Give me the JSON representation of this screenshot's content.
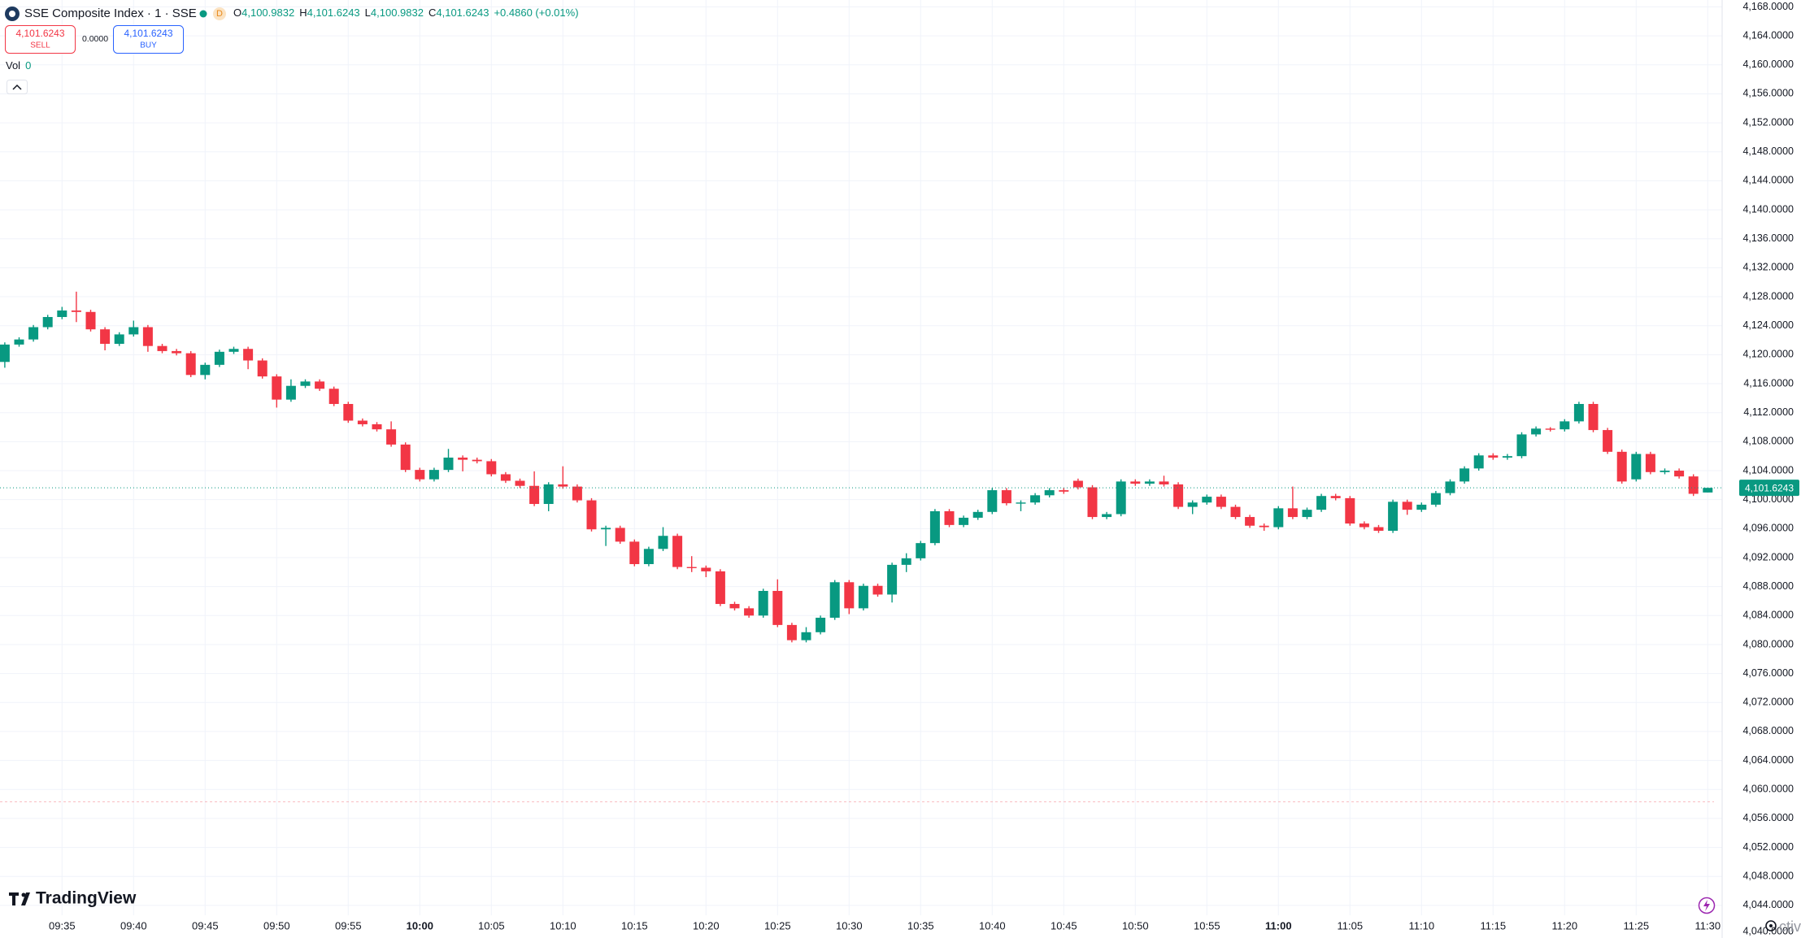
{
  "header": {
    "title": "SSE Composite Index · 1 · SSE",
    "interval_badge": "D",
    "ohlc": [
      {
        "label": "O",
        "value": "4,100.9832"
      },
      {
        "label": "H",
        "value": "4,101.6243"
      },
      {
        "label": "L",
        "value": "4,100.9832"
      },
      {
        "label": "C",
        "value": "4,101.6243"
      }
    ],
    "change": "+0.4860 (+0.01%)",
    "sell": {
      "price": "4,101.6243",
      "label": "SELL"
    },
    "spread": "0.0000",
    "buy": {
      "price": "4,101.6243",
      "label": "BUY"
    },
    "volume": {
      "label": "Vol",
      "value": "0"
    },
    "brand": "TradingView",
    "watermark_fragment": "ctiv"
  },
  "chart_data": {
    "type": "candlestick",
    "up_color": "#089981",
    "down_color": "#f23645",
    "grid": true,
    "categories": [
      null,
      null,
      null,
      null,
      "09:35",
      null,
      null,
      null,
      null,
      "09:40",
      null,
      null,
      null,
      null,
      "09:45",
      null,
      null,
      null,
      null,
      "09:50",
      null,
      null,
      null,
      null,
      "09:55",
      null,
      null,
      null,
      null,
      "10:00",
      null,
      null,
      null,
      null,
      "10:05",
      null,
      null,
      null,
      null,
      "10:10",
      null,
      null,
      null,
      null,
      "10:15",
      null,
      null,
      null,
      null,
      "10:20",
      null,
      null,
      null,
      null,
      "10:25",
      null,
      null,
      null,
      null,
      "10:30",
      null,
      null,
      null,
      null,
      "10:35",
      null,
      null,
      null,
      null,
      "10:40",
      null,
      null,
      null,
      null,
      "10:45",
      null,
      null,
      null,
      null,
      "10:50",
      null,
      null,
      null,
      null,
      "10:55",
      null,
      null,
      null,
      null,
      "11:00",
      null,
      null,
      null,
      null,
      "11:05",
      null,
      null,
      null,
      null,
      "11:10",
      null,
      null,
      null,
      null,
      "11:15",
      null,
      null,
      null,
      null,
      "11:20",
      null,
      null,
      null,
      null,
      "11:25",
      null,
      null,
      null,
      null,
      "11:30"
    ],
    "open": [
      4119.0,
      4121.4,
      4122.1,
      4123.8,
      4125.2,
      4126.1,
      4125.9,
      4123.5,
      4121.5,
      4122.8,
      4123.8,
      4121.2,
      4120.5,
      4120.2,
      4117.2,
      4118.6,
      4120.4,
      4120.8,
      4119.2,
      4117.0,
      4113.8,
      4115.7,
      4116.3,
      4115.3,
      4113.2,
      4110.9,
      4110.4,
      4109.7,
      4107.6,
      4104.1,
      4102.8,
      4104.1,
      4105.8,
      4105.5,
      4105.3,
      4103.5,
      4102.6,
      4101.9,
      4099.4,
      4102.1,
      4101.8,
      4099.9,
      4095.9,
      4096.1,
      4094.2,
      4091.1,
      4093.2,
      4095.0,
      4090.7,
      4090.6,
      4090.1,
      4085.6,
      4085.0,
      4084.0,
      4087.4,
      4082.7,
      4080.6,
      4081.7,
      4083.7,
      4088.6,
      4085.0,
      4088.1,
      4086.9,
      4091.0,
      4091.9,
      4094.0,
      4098.4,
      4096.5,
      4097.5,
      4098.3,
      4101.3,
      4099.5,
      4099.6,
      4100.6,
      4101.3,
      4102.6,
      4101.7,
      4097.6,
      4098.0,
      4102.5,
      4102.2,
      4102.5,
      4102.1,
      4099.0,
      4099.6,
      4100.4,
      4099.0,
      4097.6,
      4096.4,
      4096.2,
      4098.8,
      4097.6,
      4098.6,
      4100.5,
      4100.2,
      4096.7,
      4096.2,
      4095.7,
      4099.7,
      4098.6,
      4099.3,
      4100.9,
      4102.5,
      4104.3,
      4106.1,
      4105.8,
      4106.0,
      4109.0,
      4109.8,
      4109.7,
      4110.8,
      4113.2,
      4109.6,
      4106.6,
      4102.8,
      4106.3,
      4103.8,
      4104.0,
      4103.2,
      4100.9832
    ],
    "high": [
      4121.7,
      4122.4,
      4124.1,
      4125.5,
      4126.6,
      4128.7,
      4126.2,
      4123.8,
      4123.1,
      4124.7,
      4124.1,
      4121.5,
      4120.8,
      4120.5,
      4118.9,
      4120.7,
      4121.1,
      4121.1,
      4119.5,
      4117.3,
      4116.6,
      4116.6,
      4116.6,
      4115.6,
      4113.5,
      4111.2,
      4110.7,
      4110.8,
      4107.9,
      4104.4,
      4104.4,
      4107.0,
      4106.1,
      4105.8,
      4105.6,
      4103.8,
      4102.9,
      4103.9,
      4102.4,
      4104.6,
      4102.1,
      4100.2,
      4096.4,
      4096.4,
      4094.5,
      4093.5,
      4096.2,
      4095.3,
      4092.2,
      4090.9,
      4090.4,
      4085.9,
      4085.3,
      4087.7,
      4089.0,
      4083.0,
      4082.4,
      4084.0,
      4088.9,
      4088.9,
      4088.4,
      4088.4,
      4091.3,
      4092.6,
      4094.3,
      4098.7,
      4098.7,
      4097.8,
      4098.6,
      4101.6,
      4101.6,
      4099.9,
      4100.9,
      4101.6,
      4101.6,
      4102.9,
      4102.0,
      4098.3,
      4102.8,
      4102.8,
      4102.8,
      4103.3,
      4102.4,
      4099.9,
      4100.7,
      4100.7,
      4099.3,
      4097.9,
      4096.7,
      4099.1,
      4101.8,
      4098.9,
      4100.8,
      4100.8,
      4100.5,
      4097.0,
      4096.5,
      4100.0,
      4100.0,
      4099.6,
      4101.2,
      4102.8,
      4104.6,
      4106.4,
      4106.4,
      4106.3,
      4109.3,
      4110.1,
      4110.0,
      4111.1,
      4113.5,
      4113.5,
      4109.9,
      4106.9,
      4106.6,
      4106.6,
      4104.3,
      4104.3,
      4103.5,
      4101.6243
    ],
    "low": [
      4118.2,
      4121.1,
      4121.8,
      4123.5,
      4124.9,
      4124.5,
      4123.2,
      4120.6,
      4121.2,
      4122.5,
      4120.4,
      4120.2,
      4119.9,
      4116.9,
      4116.6,
      4118.3,
      4120.1,
      4118.0,
      4116.7,
      4112.7,
      4113.5,
      4115.4,
      4115.0,
      4112.9,
      4110.6,
      4110.1,
      4109.4,
      4107.3,
      4103.8,
      4102.5,
      4102.5,
      4103.8,
      4103.9,
      4105.0,
      4103.2,
      4102.3,
      4101.6,
      4099.1,
      4098.4,
      4101.5,
      4099.6,
      4095.6,
      4093.6,
      4093.9,
      4090.8,
      4090.8,
      4092.9,
      4090.4,
      4090.0,
      4089.3,
      4085.3,
      4084.7,
      4083.7,
      4083.7,
      4082.4,
      4080.3,
      4080.3,
      4081.4,
      4083.4,
      4084.2,
      4084.7,
      4086.6,
      4085.8,
      4090.0,
      4091.6,
      4093.7,
      4096.2,
      4096.2,
      4097.2,
      4098.0,
      4099.2,
      4098.4,
      4099.3,
      4100.3,
      4100.8,
      4101.4,
      4097.3,
      4097.3,
      4097.7,
      4101.9,
      4101.9,
      4101.8,
      4098.7,
      4098.0,
      4099.3,
      4098.7,
      4097.3,
      4096.1,
      4095.7,
      4095.9,
      4097.3,
      4097.3,
      4098.3,
      4099.9,
      4096.4,
      4095.9,
      4095.4,
      4095.4,
      4097.9,
      4098.3,
      4099.0,
      4100.6,
      4102.2,
      4104.0,
      4105.5,
      4105.5,
      4105.7,
      4108.7,
      4109.4,
      4109.4,
      4110.5,
      4109.3,
      4106.3,
      4102.2,
      4102.5,
      4103.5,
      4103.5,
      4102.9,
      4100.5,
      4100.9832
    ],
    "close": [
      4121.4,
      4122.1,
      4123.8,
      4125.2,
      4126.1,
      4125.9,
      4123.5,
      4121.5,
      4122.8,
      4123.8,
      4121.2,
      4120.5,
      4120.2,
      4117.2,
      4118.6,
      4120.4,
      4120.8,
      4119.2,
      4117.0,
      4113.8,
      4115.7,
      4116.3,
      4115.3,
      4113.2,
      4110.9,
      4110.4,
      4109.7,
      4107.6,
      4104.1,
      4102.8,
      4104.1,
      4105.8,
      4105.5,
      4105.3,
      4103.5,
      4102.6,
      4101.9,
      4099.4,
      4102.1,
      4101.8,
      4099.9,
      4095.9,
      4096.1,
      4094.2,
      4091.1,
      4093.2,
      4095.0,
      4090.7,
      4090.6,
      4090.1,
      4085.6,
      4085.0,
      4084.0,
      4087.4,
      4082.7,
      4080.6,
      4081.7,
      4083.7,
      4088.6,
      4085.0,
      4088.1,
      4086.9,
      4091.0,
      4091.9,
      4094.0,
      4098.4,
      4096.5,
      4097.5,
      4098.3,
      4101.3,
      4099.5,
      4099.6,
      4100.6,
      4101.3,
      4101.1,
      4101.7,
      4097.6,
      4098.0,
      4102.5,
      4102.2,
      4102.5,
      4102.1,
      4099.0,
      4099.6,
      4100.4,
      4099.0,
      4097.6,
      4096.4,
      4096.2,
      4098.8,
      4097.6,
      4098.6,
      4100.5,
      4100.2,
      4096.7,
      4096.2,
      4095.7,
      4099.7,
      4098.6,
      4099.3,
      4100.9,
      4102.5,
      4104.3,
      4106.1,
      4105.8,
      4106.0,
      4109.0,
      4109.8,
      4109.7,
      4110.8,
      4113.2,
      4109.6,
      4106.6,
      4102.5,
      4106.3,
      4103.8,
      4104.0,
      4103.2,
      4100.8,
      4101.6243
    ],
    "last_price_label": "4,101.6243",
    "reference_line_value": 4058.3,
    "ylim": [
      4039.5,
      4168.95
    ],
    "yticks": [
      {
        "value": 4040,
        "label": "4,040.0000"
      },
      {
        "value": 4044,
        "label": "4,044.0000"
      },
      {
        "value": 4048,
        "label": "4,048.0000"
      },
      {
        "value": 4052,
        "label": "4,052.0000"
      },
      {
        "value": 4056,
        "label": "4,056.0000"
      },
      {
        "value": 4060,
        "label": "4,060.0000"
      },
      {
        "value": 4064,
        "label": "4,064.0000"
      },
      {
        "value": 4068,
        "label": "4,068.0000"
      },
      {
        "value": 4072,
        "label": "4,072.0000"
      },
      {
        "value": 4076,
        "label": "4,076.0000"
      },
      {
        "value": 4080,
        "label": "4,080.0000"
      },
      {
        "value": 4084,
        "label": "4,084.0000"
      },
      {
        "value": 4088,
        "label": "4,088.0000"
      },
      {
        "value": 4092,
        "label": "4,092.0000"
      },
      {
        "value": 4096,
        "label": "4,096.0000"
      },
      {
        "value": 4100,
        "label": "4,100.0000"
      },
      {
        "value": 4104,
        "label": "4,104.0000"
      },
      {
        "value": 4108,
        "label": "4,108.0000"
      },
      {
        "value": 4112,
        "label": "4,112.0000"
      },
      {
        "value": 4116,
        "label": "4,116.0000"
      },
      {
        "value": 4120,
        "label": "4,120.0000"
      },
      {
        "value": 4124,
        "label": "4,124.0000"
      },
      {
        "value": 4128,
        "label": "4,128.0000"
      },
      {
        "value": 4132,
        "label": "4,132.0000"
      },
      {
        "value": 4136,
        "label": "4,136.0000"
      },
      {
        "value": 4140,
        "label": "4,140.0000"
      },
      {
        "value": 4144,
        "label": "4,144.0000"
      },
      {
        "value": 4148,
        "label": "4,148.0000"
      },
      {
        "value": 4152,
        "label": "4,152.0000"
      },
      {
        "value": 4156,
        "label": "4,156.0000"
      },
      {
        "value": 4160,
        "label": "4,160.0000"
      },
      {
        "value": 4164,
        "label": "4,164.0000"
      },
      {
        "value": 4168,
        "label": "4,168.0000"
      }
    ]
  }
}
